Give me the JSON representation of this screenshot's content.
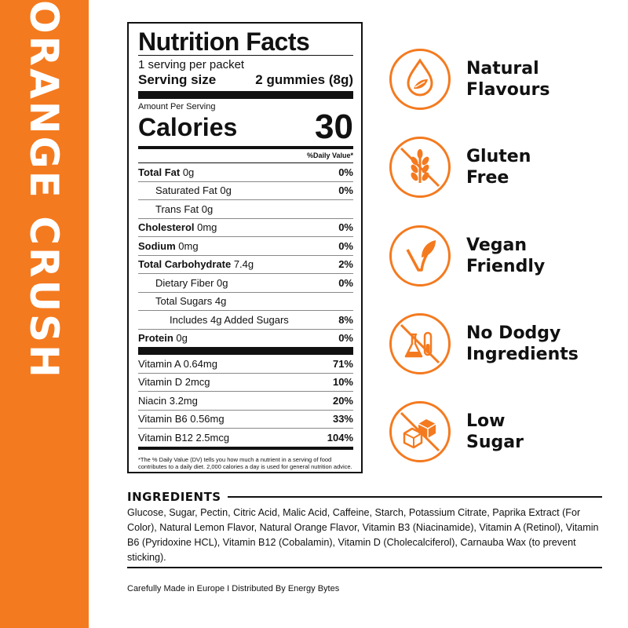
{
  "product_name": "ORANGE CRUSH",
  "colors": {
    "accent": "#f47a1f",
    "text": "#111111"
  },
  "nutrition": {
    "title": "Nutrition Facts",
    "servings_per": "1 serving per packet",
    "serving_size_label": "Serving size",
    "serving_size_value": "2 gummies (8g)",
    "amount_per_serving": "Amount Per Serving",
    "calories_label": "Calories",
    "calories_value": "30",
    "dv_header": "%Daily Value*",
    "rows": [
      {
        "bold": "Total Fat",
        "rest": " 0g",
        "pct": "0%"
      },
      {
        "bold": "",
        "rest": "Saturated Fat 0g",
        "pct": "0%"
      },
      {
        "bold": "",
        "rest": "Trans Fat 0g",
        "pct": ""
      },
      {
        "bold": "Cholesterol",
        "rest": " 0mg",
        "pct": "0%"
      },
      {
        "bold": "Sodium",
        "rest": " 0mg",
        "pct": "0%"
      },
      {
        "bold": "Total Carbohydrate",
        "rest": " 7.4g",
        "pct": "2%"
      },
      {
        "bold": "",
        "rest": "Dietary Fiber 0g",
        "pct": "0%"
      },
      {
        "bold": "",
        "rest": "Total Sugars 4g",
        "pct": ""
      },
      {
        "bold": "",
        "rest": "Includes 4g Added Sugars",
        "pct": "8%"
      },
      {
        "bold": "Protein",
        "rest": " 0g",
        "pct": "0%"
      }
    ],
    "vitamins": [
      {
        "name": "Vitamin A 0.64mg",
        "pct": "71%"
      },
      {
        "name": "Vitamin D 2mcg",
        "pct": "10%"
      },
      {
        "name": "Niacin 3.2mg",
        "pct": "20%"
      },
      {
        "name": "Vitamin B6 0.56mg",
        "pct": "33%"
      },
      {
        "name": "Vitamin B12 2.5mcg",
        "pct": "104%"
      }
    ],
    "footnote": "*The % Daily Value (DV) tells you how much a nutrient in a serving of food contributes to a daily diet. 2,000 calories a day is used for general nutrition advice."
  },
  "claims": [
    {
      "icon": "drop-leaf-icon",
      "line1": "Natural",
      "line2": "Flavours"
    },
    {
      "icon": "wheat-crossed-icon",
      "line1": "Gluten",
      "line2": "Free"
    },
    {
      "icon": "plant-sprout-icon",
      "line1": "Vegan",
      "line2": "Friendly"
    },
    {
      "icon": "lab-flask-crossed-icon",
      "line1": "No Dodgy",
      "line2": "Ingredients"
    },
    {
      "icon": "sugar-cubes-crossed-icon",
      "line1": "Low",
      "line2": "Sugar"
    }
  ],
  "ingredients": {
    "title": "INGREDIENTS",
    "text": "Glucose, Sugar, Pectin, Citric Acid, Malic Acid, Caffeine, Starch, Potassium Citrate, Paprika Extract (For Color), Natural Lemon Flavor, Natural Orange Flavor, Vitamin B3 (Niacinamide), Vitamin A (Retinol), Vitamin B6 (Pyridoxine HCL), Vitamin B12 (Cobalamin), Vitamin D (Cholecalciferol), Carnauba Wax (to prevent sticking)."
  },
  "footer": "Carefully Made in Europe I Distributed By Energy Bytes"
}
